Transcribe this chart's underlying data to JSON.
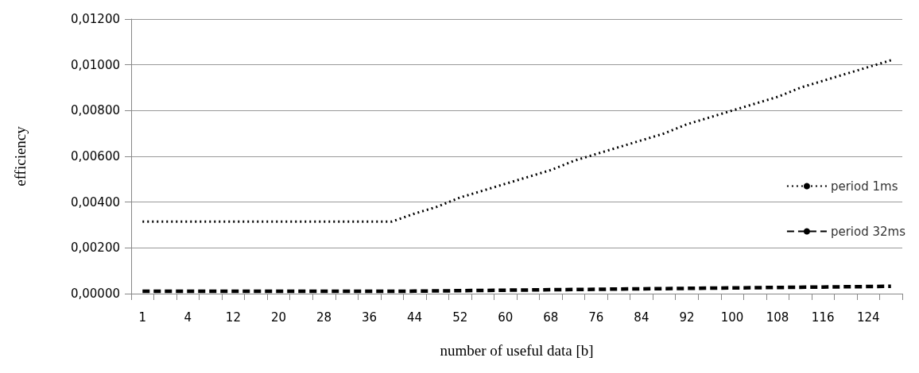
{
  "chart_data": {
    "type": "line",
    "xlabel": "number of useful data [b]",
    "ylabel": "efficiency",
    "categories": [
      "1",
      null,
      "4",
      null,
      "12",
      null,
      "20",
      null,
      "28",
      null,
      "36",
      null,
      "44",
      null,
      "52",
      null,
      "60",
      null,
      "68",
      null,
      "76",
      null,
      "84",
      null,
      "92",
      null,
      "100",
      null,
      "108",
      null,
      "116",
      null,
      "124",
      null
    ],
    "series": [
      {
        "name": "period 1ms",
        "color": "#000000",
        "line_style": "dotted",
        "values": [
          0.00315,
          0.00315,
          0.00315,
          0.00315,
          0.00315,
          0.00315,
          0.00315,
          0.00315,
          0.00315,
          0.00315,
          0.00315,
          0.00315,
          0.0035,
          0.0038,
          0.0042,
          0.0045,
          0.0048,
          0.0051,
          0.0054,
          0.0058,
          0.0061,
          0.0064,
          0.0067,
          0.007,
          0.0074,
          0.0077,
          0.008,
          0.0083,
          0.0086,
          0.009,
          0.0093,
          0.0096,
          0.0099,
          0.0102
        ]
      },
      {
        "name": "period 32ms",
        "color": "#000000",
        "line_style": "dashed",
        "values": [
          0.0001,
          0.0001,
          0.0001,
          0.0001,
          0.0001,
          0.0001,
          0.0001,
          0.0001,
          0.0001,
          0.0001,
          0.0001,
          0.0001,
          0.00011,
          0.00012,
          0.00013,
          0.00014,
          0.00015,
          0.00016,
          0.00017,
          0.00018,
          0.00019,
          0.0002,
          0.00021,
          0.00022,
          0.00023,
          0.00024,
          0.00025,
          0.00026,
          0.00027,
          0.00028,
          0.00029,
          0.0003,
          0.00031,
          0.00032
        ]
      }
    ],
    "ylim": [
      0,
      0.012
    ],
    "yticks": [
      {
        "value": 0,
        "label": "0,00000"
      },
      {
        "value": 0.002,
        "label": "0,00200"
      },
      {
        "value": 0.004,
        "label": "0,00400"
      },
      {
        "value": 0.006,
        "label": "0,00600"
      },
      {
        "value": 0.008,
        "label": "0,00800"
      },
      {
        "value": 0.01,
        "label": "0,01000"
      },
      {
        "value": 0.012,
        "label": "0,01200"
      }
    ],
    "grid": "y",
    "legend": "right",
    "marker": "none"
  }
}
